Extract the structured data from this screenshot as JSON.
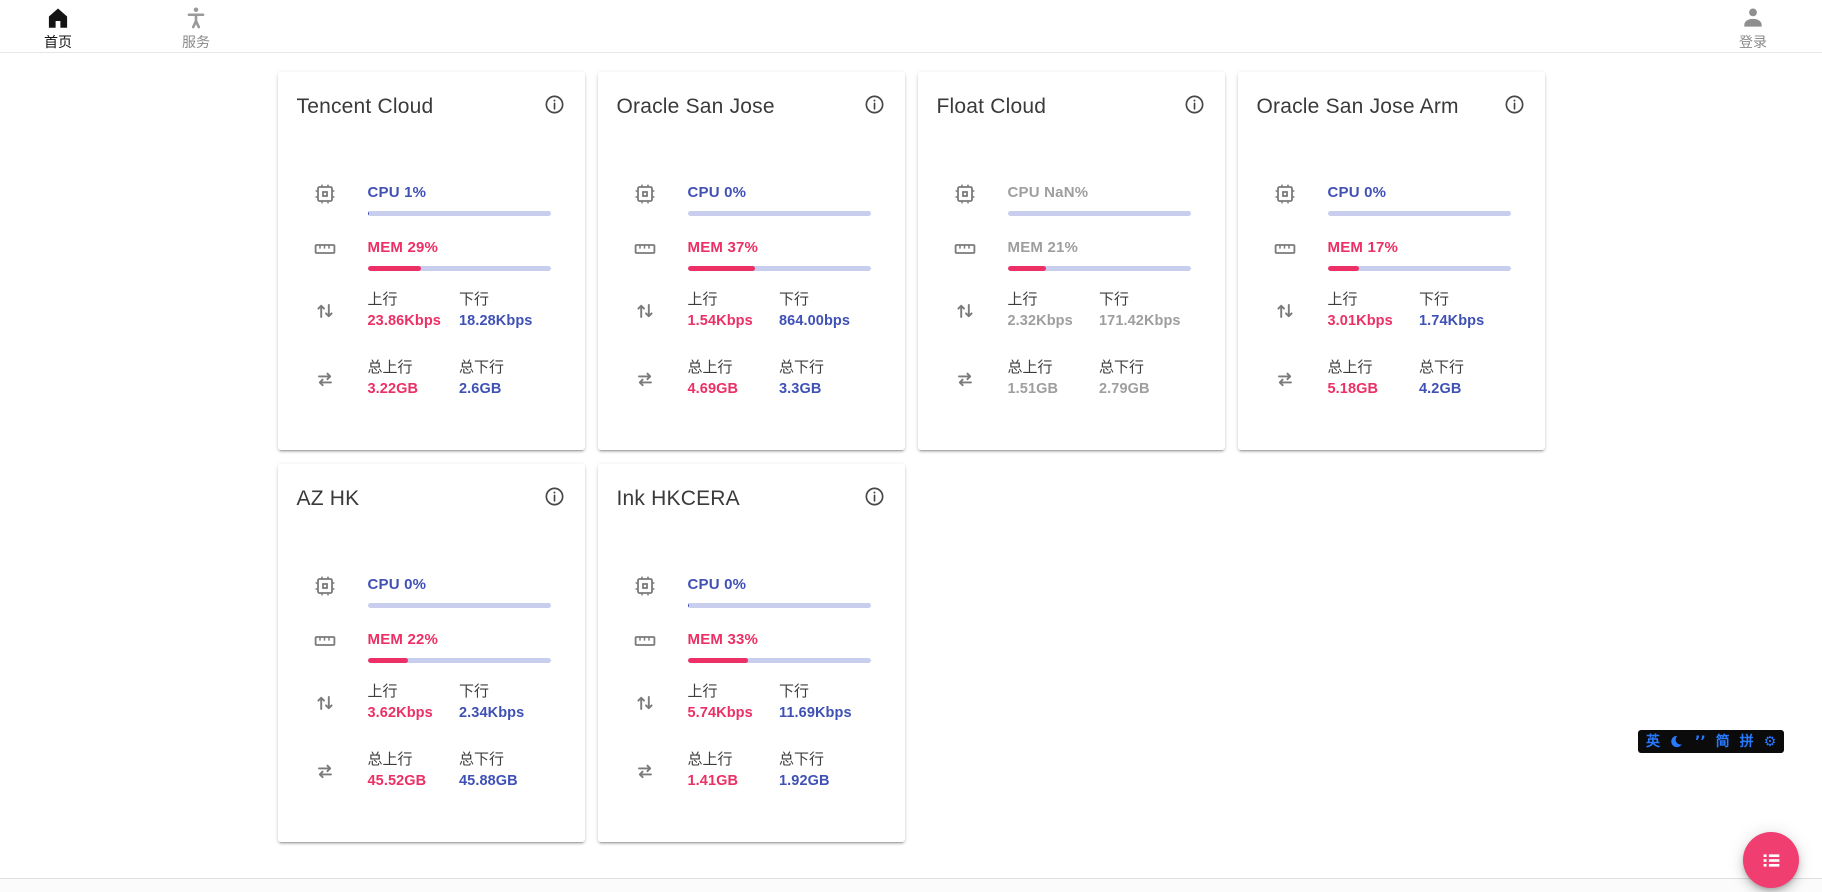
{
  "nav": {
    "items": [
      {
        "label": "首页",
        "icon": "home-icon",
        "active": true
      },
      {
        "label": "服务",
        "icon": "accessibility-icon",
        "active": false
      }
    ],
    "login_label": "登录"
  },
  "labels": {
    "up": "上行",
    "down": "下行",
    "total_up": "总上行",
    "total_down": "总下行"
  },
  "colors": {
    "indigo": "#3f51b5",
    "pink": "#ec2f64",
    "track": "#c9cdee",
    "offline_gray": "#9e9e9e",
    "fab": "#ef3e6f",
    "ime_blue": "#2979ff"
  },
  "servers": [
    {
      "name": "Tencent Cloud",
      "cpu_text": "CPU 1%",
      "cpu_pct": 1,
      "mem_text": "MEM 29%",
      "mem_pct": 29,
      "up": "23.86Kbps",
      "down": "18.28Kbps",
      "total_up": "3.22GB",
      "total_down": "2.6GB",
      "offline": false
    },
    {
      "name": "Oracle San Jose",
      "cpu_text": "CPU 0%",
      "cpu_pct": 0,
      "mem_text": "MEM 37%",
      "mem_pct": 37,
      "up": "1.54Kbps",
      "down": "864.00bps",
      "total_up": "4.69GB",
      "total_down": "3.3GB",
      "offline": false
    },
    {
      "name": "Float Cloud",
      "cpu_text": "CPU NaN%",
      "cpu_pct": 0,
      "mem_text": "MEM 21%",
      "mem_pct": 21,
      "up": "2.32Kbps",
      "down": "171.42Kbps",
      "total_up": "1.51GB",
      "total_down": "2.79GB",
      "offline": true
    },
    {
      "name": "Oracle San Jose Arm",
      "cpu_text": "CPU 0%",
      "cpu_pct": 0,
      "mem_text": "MEM 17%",
      "mem_pct": 17,
      "up": "3.01Kbps",
      "down": "1.74Kbps",
      "total_up": "5.18GB",
      "total_down": "4.2GB",
      "offline": false
    },
    {
      "name": "AZ HK",
      "cpu_text": "CPU 0%",
      "cpu_pct": 0,
      "mem_text": "MEM 22%",
      "mem_pct": 22,
      "up": "3.62Kbps",
      "down": "2.34Kbps",
      "total_up": "45.52GB",
      "total_down": "45.88GB",
      "offline": false
    },
    {
      "name": "Ink HKCERA",
      "cpu_text": "CPU 0%",
      "cpu_pct": 0.5,
      "mem_text": "MEM 33%",
      "mem_pct": 33,
      "up": "5.74Kbps",
      "down": "11.69Kbps",
      "total_up": "1.41GB",
      "total_down": "1.92GB",
      "offline": false
    }
  ],
  "ime_bar": {
    "items": [
      "英",
      "moon-icon",
      "’’",
      "简",
      "拼",
      "gear-icon"
    ]
  },
  "fab": {
    "icon": "list-icon"
  }
}
